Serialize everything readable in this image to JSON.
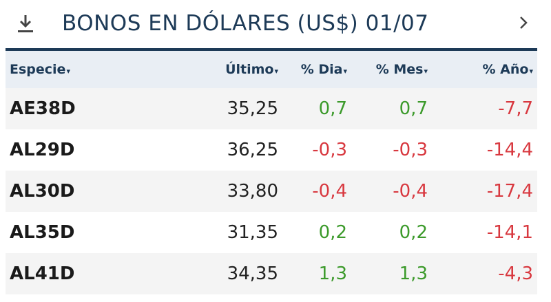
{
  "header": {
    "title": "BONOS EN DÓLARES (US$) 01/07"
  },
  "table": {
    "columns": [
      "Especie",
      "Último",
      "% Dia",
      "% Mes",
      "% Año"
    ],
    "rows": [
      [
        "AE38D",
        "35,25",
        "0,7",
        "0,7",
        "-7,7"
      ],
      [
        "AL29D",
        "36,25",
        "-0,3",
        "-0,3",
        "-14,4"
      ],
      [
        "AL30D",
        "33,80",
        "-0,4",
        "-0,4",
        "-17,4"
      ],
      [
        "AL35D",
        "31,35",
        "0,2",
        "0,2",
        "-14,1"
      ],
      [
        "AL41D",
        "34,35",
        "1,3",
        "1,3",
        "-4,3"
      ]
    ]
  }
}
